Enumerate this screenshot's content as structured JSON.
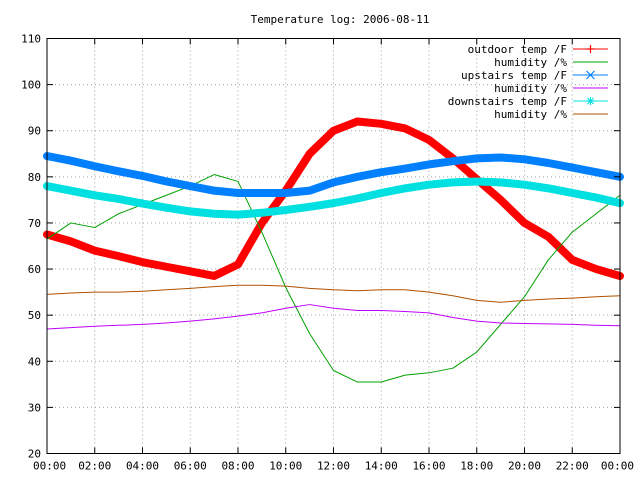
{
  "chart_data": {
    "type": "line",
    "title": "Temperature log: 2006-08-11",
    "xlabel": "",
    "ylabel": "",
    "xlim": [
      0,
      24
    ],
    "ylim": [
      20,
      110
    ],
    "grid": true,
    "legend_position": "top-right",
    "x_tick_labels": [
      "00:00",
      "02:00",
      "04:00",
      "06:00",
      "08:00",
      "10:00",
      "12:00",
      "14:00",
      "16:00",
      "18:00",
      "20:00",
      "22:00",
      "00:00"
    ],
    "y_tick_labels": [
      "20",
      "30",
      "40",
      "50",
      "60",
      "70",
      "80",
      "90",
      "100",
      "110"
    ],
    "x": [
      0,
      1,
      2,
      3,
      4,
      5,
      6,
      7,
      8,
      9,
      10,
      11,
      12,
      13,
      14,
      15,
      16,
      17,
      18,
      19,
      20,
      21,
      22,
      23,
      24
    ],
    "series": [
      {
        "name": "outdoor temp /F",
        "color": "#ff0000",
        "marker": "plus",
        "values": [
          67.5,
          66,
          64,
          62.8,
          61.5,
          60.5,
          59.5,
          58.5,
          61,
          70,
          77,
          85,
          90,
          92,
          91.5,
          90.5,
          88,
          84,
          79.5,
          75,
          70,
          67,
          62,
          60,
          58.5
        ]
      },
      {
        "name": "humidity /%",
        "color": "#00a000",
        "marker": "none",
        "values": [
          66.5,
          70,
          69,
          72,
          74,
          76,
          78,
          80.5,
          79,
          68,
          56,
          46,
          38,
          35.5,
          35.5,
          37,
          37.5,
          38.5,
          42,
          48,
          54,
          62,
          68,
          72,
          76
        ]
      },
      {
        "name": "upstairs temp /F",
        "color": "#0080ff",
        "marker": "x",
        "values": [
          84.5,
          83.5,
          82.3,
          81.2,
          80.2,
          79,
          78,
          77,
          76.5,
          76.5,
          76.5,
          77,
          78.8,
          80,
          81,
          81.8,
          82.7,
          83.4,
          84,
          84.2,
          83.8,
          83,
          82,
          81,
          80
        ]
      },
      {
        "name": "humidity /%",
        "color": "#c000ff",
        "marker": "none",
        "values": [
          47,
          47.3,
          47.6,
          47.8,
          48,
          48.3,
          48.7,
          49.2,
          49.8,
          50.5,
          51.5,
          52.3,
          51.5,
          51,
          51,
          50.8,
          50.5,
          49.5,
          48.7,
          48.3,
          48.2,
          48.1,
          48,
          47.8,
          47.7
        ]
      },
      {
        "name": "downstairs temp /F",
        "color": "#00e0e0",
        "marker": "star",
        "values": [
          78,
          77,
          76,
          75.2,
          74.2,
          73.3,
          72.5,
          72,
          71.8,
          72.2,
          72.8,
          73.5,
          74.3,
          75.3,
          76.5,
          77.5,
          78.3,
          78.8,
          79,
          78.8,
          78.3,
          77.5,
          76.5,
          75.5,
          74.3
        ]
      },
      {
        "name": "humidity /%",
        "color": "#b05000",
        "marker": "none",
        "values": [
          54.5,
          54.8,
          55,
          55,
          55.2,
          55.5,
          55.8,
          56.2,
          56.5,
          56.5,
          56.3,
          55.8,
          55.5,
          55.3,
          55.5,
          55.5,
          55,
          54.2,
          53.2,
          52.8,
          53.2,
          53.5,
          53.7,
          54,
          54.2
        ]
      }
    ]
  }
}
